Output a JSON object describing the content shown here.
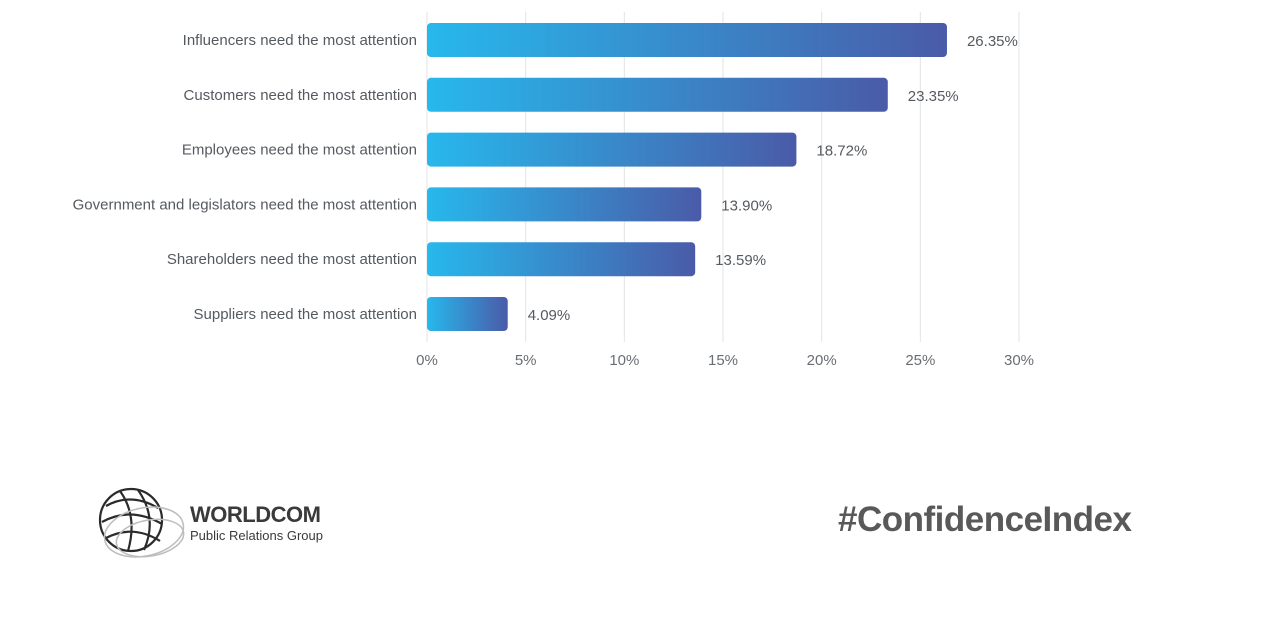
{
  "chart_data": {
    "type": "bar",
    "orientation": "horizontal",
    "categories": [
      "Influencers need the most attention",
      "Customers need the most attention",
      "Employees need the most attention",
      "Government and legislators need the most attention",
      "Shareholders need the most attention",
      "Suppliers need the most attention"
    ],
    "values": [
      26.35,
      23.35,
      18.72,
      13.9,
      13.59,
      4.09
    ],
    "value_labels": [
      "26.35%",
      "23.35%",
      "18.72%",
      "13.90%",
      "13.59%",
      "4.09%"
    ],
    "xlim": [
      0,
      30
    ],
    "xticks": [
      0,
      5,
      10,
      15,
      20,
      25,
      30
    ],
    "xtick_labels": [
      "0%",
      "5%",
      "10%",
      "15%",
      "20%",
      "25%",
      "30%"
    ],
    "grid": true,
    "colors": {
      "bar_start": "#27b8ec",
      "bar_end": "#4a5ba8"
    }
  },
  "footer": {
    "logo_name": "WORLDCOM",
    "logo_sub": "Public Relations Group",
    "hashtag": "#ConfidenceIndex"
  }
}
